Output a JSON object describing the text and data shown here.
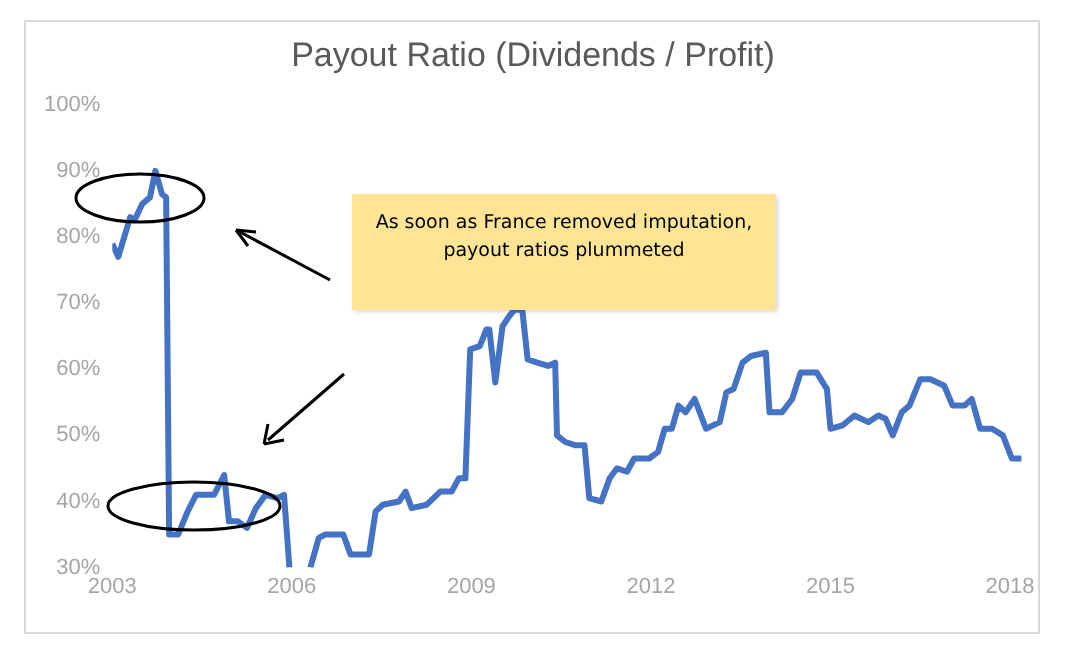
{
  "chart_data": {
    "type": "line",
    "title": "Payout Ratio (Dividends / Profit)",
    "x": [
      2003.0,
      2003.1,
      2003.3,
      2003.37,
      2003.5,
      2003.63,
      2003.72,
      2003.83,
      2003.9,
      2003.95,
      2004.1,
      2004.26,
      2004.4,
      2004.7,
      2004.87,
      2004.95,
      2005.1,
      2005.25,
      2005.4,
      2005.56,
      2005.76,
      2005.87,
      2005.96,
      2006.1,
      2006.31,
      2006.45,
      2006.56,
      2006.86,
      2006.98,
      2007.29,
      2007.4,
      2007.52,
      2007.79,
      2007.9,
      2008.0,
      2008.25,
      2008.48,
      2008.67,
      2008.79,
      2008.9,
      2008.98,
      2009.14,
      2009.25,
      2009.3,
      2009.4,
      2009.52,
      2009.63,
      2009.72,
      2009.85,
      2009.94,
      2010.1,
      2010.28,
      2010.4,
      2010.43,
      2010.57,
      2010.74,
      2010.89,
      2010.97,
      2011.17,
      2011.31,
      2011.43,
      2011.6,
      2011.72,
      2011.97,
      2012.12,
      2012.23,
      2012.35,
      2012.46,
      2012.58,
      2012.73,
      2012.92,
      2013.15,
      2013.26,
      2013.38,
      2013.53,
      2013.67,
      2013.92,
      2013.98,
      2014.19,
      2014.36,
      2014.5,
      2014.77,
      2014.94,
      2015.0,
      2015.2,
      2015.4,
      2015.63,
      2015.8,
      2015.92,
      2016.04,
      2016.19,
      2016.32,
      2016.5,
      2016.67,
      2016.9,
      2017.04,
      2017.24,
      2017.36,
      2017.5,
      2017.7,
      2017.88,
      2018.03,
      2018.19
    ],
    "series": [
      {
        "color": "#4472c4",
        "values": [
          79,
          77,
          83,
          82.5,
          85,
          86,
          90,
          86.5,
          86,
          35,
          35,
          38.5,
          41,
          41,
          44,
          37,
          37,
          36,
          39,
          41,
          40.5,
          41,
          30,
          null,
          30,
          34.5,
          35,
          35,
          32,
          32,
          38.5,
          39.5,
          40,
          41.5,
          39,
          39.5,
          41.5,
          41.5,
          43.5,
          43.5,
          63,
          63.5,
          66,
          66,
          58,
          66.5,
          68,
          69,
          69,
          61.5,
          61,
          60.5,
          61,
          50,
          49,
          48.5,
          48.5,
          40.5,
          40,
          43.5,
          45,
          44.5,
          46.5,
          46.5,
          47.5,
          51,
          51,
          54.5,
          53.5,
          55.5,
          51,
          52,
          56.5,
          57,
          61,
          62,
          62.5,
          53.5,
          53.5,
          55.5,
          59.5,
          59.5,
          57,
          51,
          51.5,
          53,
          52,
          53,
          52.5,
          50,
          53.5,
          54.5,
          58.5,
          58.5,
          57.5,
          54.5,
          54.5,
          55.5,
          51,
          51,
          50,
          46.5,
          46.5
        ]
      }
    ],
    "xlim": [
      2003,
      2018.4
    ],
    "xticks": [
      2003,
      2006,
      2009,
      2012,
      2015,
      2018
    ],
    "ylim": [
      30,
      100
    ],
    "yticks": [
      {
        "value": 30,
        "label": "30%"
      },
      {
        "value": 40,
        "label": "40%"
      },
      {
        "value": 50,
        "label": "50%"
      },
      {
        "value": 60,
        "label": "60%"
      },
      {
        "value": 70,
        "label": "70%"
      },
      {
        "value": 80,
        "label": "80%"
      },
      {
        "value": 90,
        "label": "90%"
      },
      {
        "value": 100,
        "label": "100%"
      }
    ],
    "grid": false,
    "legend": false,
    "marker": "none",
    "line_style": "solid",
    "annotations": [
      "As soon as France removed imputation, payout ratios plummeted"
    ]
  }
}
